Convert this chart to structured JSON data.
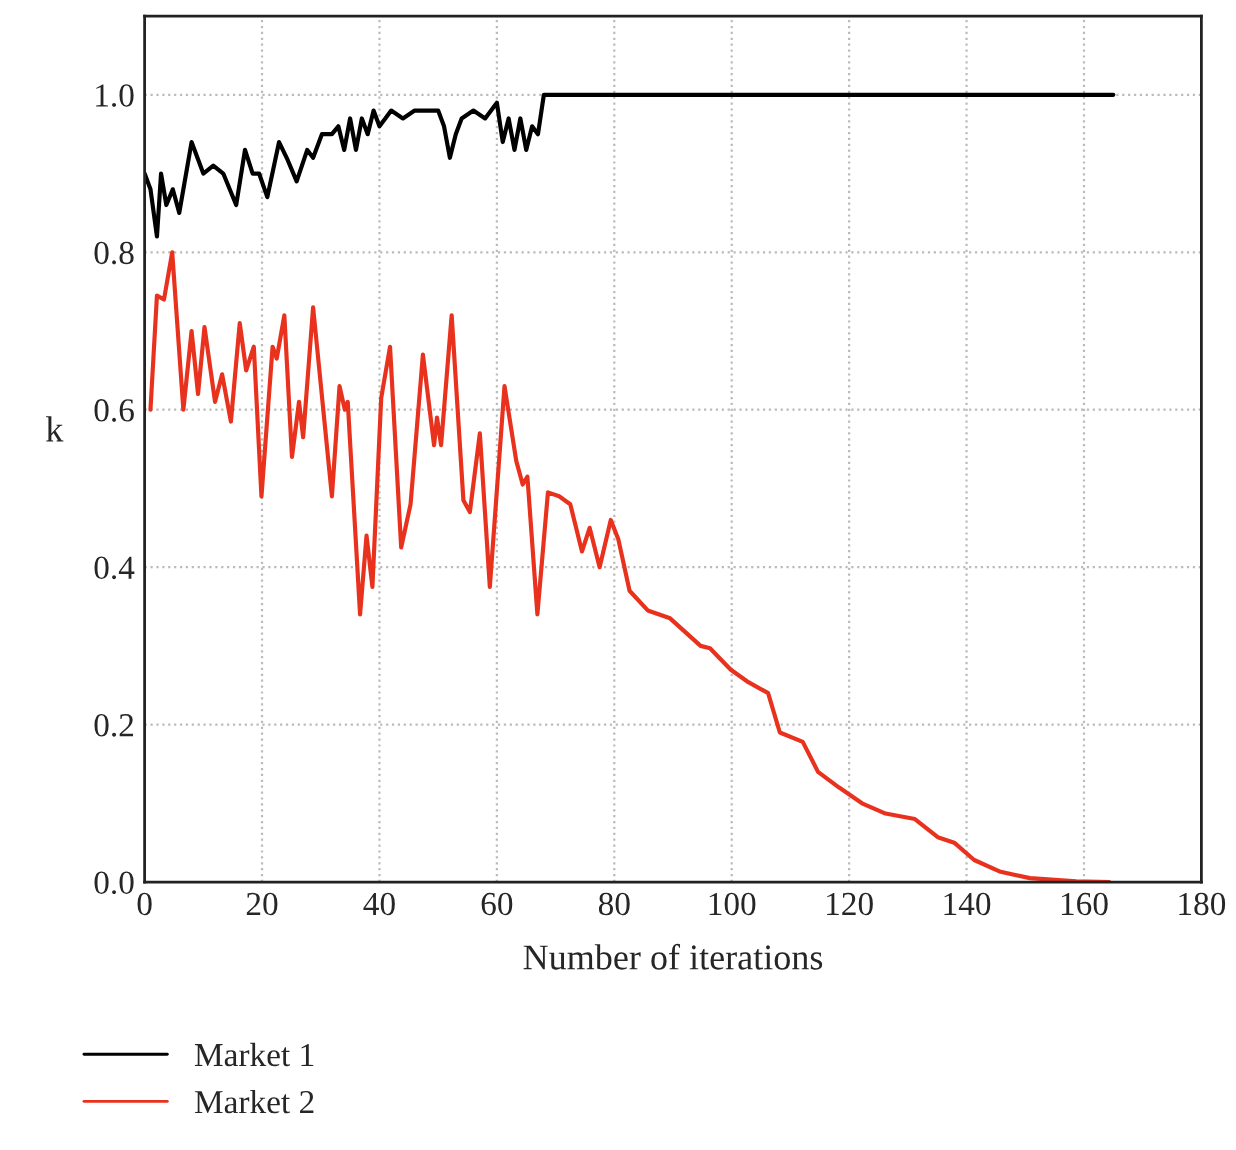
{
  "chart_data": {
    "type": "line",
    "xlabel": "Number of iterations",
    "ylabel": "k",
    "xlim": [
      0,
      180
    ],
    "xticks": [
      0,
      20,
      40,
      60,
      80,
      100,
      120,
      140,
      160,
      180
    ],
    "ylim": [
      0,
      1.1
    ],
    "yticks": [
      {
        "value": 0,
        "label": "0.0"
      },
      {
        "value": 0.2,
        "label": "0.2"
      },
      {
        "value": 0.4,
        "label": "0.4"
      },
      {
        "value": 0.6,
        "label": "0.6"
      },
      {
        "value": 0.8,
        "label": "0.8"
      },
      {
        "value": 1,
        "label": "1.0"
      }
    ],
    "grid": true,
    "legend": "bottom left",
    "line_style": "solid",
    "marker": "none",
    "series": [
      {
        "name": "Market 1",
        "color": "#000000",
        "x": [
          0,
          1,
          2.1,
          2.8,
          3.7,
          4.8,
          5.9,
          8,
          10,
          11.7,
          13.4,
          15.6,
          17.1,
          18.4,
          19.5,
          20.9,
          22.9,
          24.2,
          25.9,
          27.7,
          28.7,
          30.2,
          31.9,
          33,
          34,
          35,
          36,
          37,
          38,
          39,
          40,
          41,
          42,
          44,
          46,
          48,
          50,
          51,
          52,
          53,
          54,
          56,
          58,
          60,
          61,
          62,
          63,
          64,
          65,
          66,
          67,
          68,
          70,
          100,
          165
        ],
        "values": [
          0.9,
          0.88,
          0.82,
          0.9,
          0.86,
          0.88,
          0.85,
          0.94,
          0.9,
          0.91,
          0.9,
          0.86,
          0.93,
          0.9,
          0.9,
          0.87,
          0.94,
          0.92,
          0.89,
          0.93,
          0.92,
          0.95,
          0.95,
          0.96,
          0.93,
          0.97,
          0.93,
          0.97,
          0.95,
          0.98,
          0.96,
          0.97,
          0.98,
          0.97,
          0.98,
          0.98,
          0.98,
          0.96,
          0.92,
          0.95,
          0.97,
          0.98,
          0.97,
          0.99,
          0.94,
          0.97,
          0.93,
          0.97,
          0.93,
          0.96,
          0.95,
          1.0,
          1.0,
          1.0,
          1.0
        ]
      },
      {
        "name": "Market 2",
        "color": "#e8321e",
        "x": [
          1,
          2.1,
          3.3,
          4.7,
          6.6,
          8,
          9.1,
          10.2,
          12,
          13.2,
          14.7,
          16.2,
          17.3,
          18.6,
          19.9,
          21.8,
          22.5,
          23.8,
          25.1,
          26.3,
          27,
          28.7,
          31.9,
          33.2,
          34.1,
          34.6,
          36.7,
          37.8,
          38.8,
          40.3,
          41.8,
          43.7,
          45.3,
          47.4,
          49.3,
          49.8,
          50.5,
          52.3,
          54.3,
          55.4,
          57.1,
          58.8,
          61.3,
          63.3,
          64.4,
          65.2,
          66.9,
          68.7,
          70.6,
          72.5,
          74.5,
          75.8,
          77.5,
          79.4,
          80.7,
          82.6,
          85.7,
          89.5,
          94.7,
          96.3,
          99.8,
          102.6,
          106.2,
          108.2,
          112.1,
          114.7,
          118.3,
          122.2,
          126.2,
          131.2,
          135.1,
          137.9,
          141.3,
          145.8,
          150.8,
          158.7,
          164.3
        ],
        "values": [
          0.6,
          0.745,
          0.74,
          0.8,
          0.6,
          0.7,
          0.62,
          0.705,
          0.61,
          0.645,
          0.585,
          0.71,
          0.65,
          0.68,
          0.49,
          0.68,
          0.665,
          0.72,
          0.54,
          0.61,
          0.565,
          0.73,
          0.49,
          0.63,
          0.6,
          0.61,
          0.34,
          0.44,
          0.375,
          0.615,
          0.68,
          0.425,
          0.48,
          0.67,
          0.555,
          0.59,
          0.555,
          0.72,
          0.485,
          0.47,
          0.57,
          0.375,
          0.63,
          0.535,
          0.505,
          0.515,
          0.34,
          0.495,
          0.49,
          0.48,
          0.42,
          0.45,
          0.4,
          0.46,
          0.435,
          0.37,
          0.345,
          0.335,
          0.3,
          0.297,
          0.27,
          0.255,
          0.24,
          0.19,
          0.178,
          0.14,
          0.12,
          0.1,
          0.087,
          0.08,
          0.057,
          0.05,
          0.028,
          0.013,
          0.005,
          0.001,
          0.0
        ]
      }
    ]
  }
}
